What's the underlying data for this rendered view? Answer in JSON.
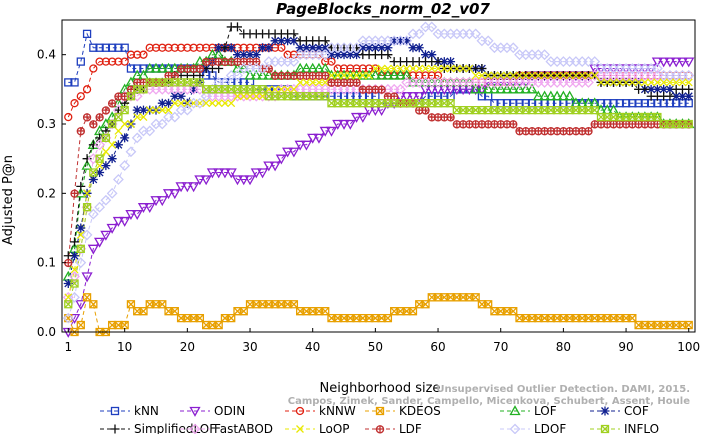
{
  "chart_data": {
    "type": "line",
    "title": "PageBlocks_norm_02_v07",
    "xlabel": "Neighborhood size",
    "ylabel": "Adjusted P@n",
    "xlim": [
      0,
      101
    ],
    "ylim": [
      0,
      0.45
    ],
    "xticks": [
      1,
      10,
      20,
      30,
      40,
      50,
      60,
      70,
      80,
      90,
      100
    ],
    "yticks": [
      0.0,
      0.1,
      0.2,
      0.3,
      0.4
    ],
    "ytick_labels": [
      "0.0",
      "0.1",
      "0.2",
      "0.3",
      "0.4"
    ],
    "grid": false,
    "legend_position": "bottom",
    "watermark": [
      "Unsupervised Outlier Detection. DAMI, 2015.",
      "Campos, Zimek, Sander, Campello, Micenkova, Schubert, Assent, Houle"
    ],
    "series": [
      {
        "name": "kNN",
        "color": "#1f3fbf",
        "marker": "square",
        "points": [
          [
            1,
            0.36
          ],
          [
            2,
            0.36
          ],
          [
            3,
            0.39
          ],
          [
            4,
            0.43
          ],
          [
            5,
            0.41
          ],
          [
            10,
            0.41
          ],
          [
            11,
            0.38
          ],
          [
            15,
            0.38
          ],
          [
            20,
            0.38
          ],
          [
            22,
            0.38
          ],
          [
            25,
            0.36
          ],
          [
            35,
            0.35
          ],
          [
            38,
            0.34
          ],
          [
            45,
            0.34
          ],
          [
            55,
            0.33
          ],
          [
            65,
            0.35
          ],
          [
            70,
            0.33
          ],
          [
            85,
            0.33
          ],
          [
            100,
            0.33
          ]
        ]
      },
      {
        "name": "ODIN",
        "color": "#8b1fd0",
        "marker": "triangle-down",
        "points": [
          [
            1,
            0.0
          ],
          [
            2,
            0.02
          ],
          [
            3,
            0.04
          ],
          [
            4,
            0.08
          ],
          [
            5,
            0.12
          ],
          [
            8,
            0.15
          ],
          [
            10,
            0.16
          ],
          [
            15,
            0.19
          ],
          [
            20,
            0.21
          ],
          [
            25,
            0.23
          ],
          [
            30,
            0.22
          ],
          [
            35,
            0.25
          ],
          [
            40,
            0.28
          ],
          [
            45,
            0.3
          ],
          [
            50,
            0.32
          ],
          [
            55,
            0.34
          ],
          [
            60,
            0.35
          ],
          [
            65,
            0.35
          ],
          [
            70,
            0.36
          ],
          [
            80,
            0.37
          ],
          [
            90,
            0.38
          ],
          [
            100,
            0.39
          ]
        ]
      },
      {
        "name": "kNNW",
        "color": "#e02010",
        "marker": "circle",
        "points": [
          [
            1,
            0.31
          ],
          [
            2,
            0.33
          ],
          [
            3,
            0.34
          ],
          [
            4,
            0.35
          ],
          [
            5,
            0.38
          ],
          [
            6,
            0.39
          ],
          [
            10,
            0.39
          ],
          [
            12,
            0.4
          ],
          [
            15,
            0.41
          ],
          [
            20,
            0.41
          ],
          [
            25,
            0.41
          ],
          [
            30,
            0.41
          ],
          [
            40,
            0.4
          ],
          [
            45,
            0.38
          ],
          [
            55,
            0.37
          ],
          [
            65,
            0.36
          ],
          [
            80,
            0.37
          ],
          [
            100,
            0.37
          ]
        ]
      },
      {
        "name": "KDEOS",
        "color": "#e8a000",
        "marker": "square-x",
        "points": [
          [
            1,
            0.02
          ],
          [
            2,
            0.0
          ],
          [
            3,
            0.01
          ],
          [
            4,
            0.05
          ],
          [
            5,
            0.04
          ],
          [
            6,
            0.0
          ],
          [
            10,
            0.01
          ],
          [
            11,
            0.04
          ],
          [
            12,
            0.03
          ],
          [
            15,
            0.04
          ],
          [
            20,
            0.02
          ],
          [
            25,
            0.01
          ],
          [
            30,
            0.04
          ],
          [
            35,
            0.04
          ],
          [
            40,
            0.03
          ],
          [
            45,
            0.02
          ],
          [
            50,
            0.02
          ],
          [
            55,
            0.03
          ],
          [
            60,
            0.05
          ],
          [
            65,
            0.05
          ],
          [
            70,
            0.03
          ],
          [
            75,
            0.02
          ],
          [
            80,
            0.02
          ],
          [
            85,
            0.02
          ],
          [
            90,
            0.02
          ],
          [
            93,
            0.01
          ],
          [
            100,
            0.01
          ]
        ]
      },
      {
        "name": "LOF",
        "color": "#22b022",
        "marker": "triangle-up",
        "points": [
          [
            1,
            0.08
          ],
          [
            2,
            0.12
          ],
          [
            3,
            0.2
          ],
          [
            4,
            0.24
          ],
          [
            5,
            0.27
          ],
          [
            6,
            0.29
          ],
          [
            8,
            0.31
          ],
          [
            10,
            0.35
          ],
          [
            12,
            0.37
          ],
          [
            15,
            0.38
          ],
          [
            20,
            0.38
          ],
          [
            25,
            0.4
          ],
          [
            30,
            0.37
          ],
          [
            35,
            0.37
          ],
          [
            40,
            0.38
          ],
          [
            45,
            0.37
          ],
          [
            50,
            0.37
          ],
          [
            60,
            0.36
          ],
          [
            70,
            0.35
          ],
          [
            80,
            0.34
          ],
          [
            90,
            0.31
          ],
          [
            100,
            0.3
          ]
        ]
      },
      {
        "name": "COF",
        "color": "#102090",
        "marker": "asterisk",
        "points": [
          [
            1,
            0.07
          ],
          [
            2,
            0.11
          ],
          [
            3,
            0.15
          ],
          [
            4,
            0.2
          ],
          [
            5,
            0.22
          ],
          [
            8,
            0.25
          ],
          [
            10,
            0.28
          ],
          [
            12,
            0.32
          ],
          [
            15,
            0.32
          ],
          [
            18,
            0.34
          ],
          [
            20,
            0.33
          ],
          [
            22,
            0.36
          ],
          [
            25,
            0.41
          ],
          [
            30,
            0.4
          ],
          [
            35,
            0.42
          ],
          [
            40,
            0.41
          ],
          [
            45,
            0.4
          ],
          [
            55,
            0.42
          ],
          [
            60,
            0.39
          ],
          [
            70,
            0.37
          ],
          [
            80,
            0.37
          ],
          [
            90,
            0.36
          ],
          [
            100,
            0.34
          ]
        ]
      },
      {
        "name": "SimplifiedLOF",
        "color": "#101010",
        "marker": "plus",
        "points": [
          [
            1,
            0.11
          ],
          [
            2,
            0.13
          ],
          [
            3,
            0.21
          ],
          [
            4,
            0.25
          ],
          [
            5,
            0.27
          ],
          [
            8,
            0.3
          ],
          [
            10,
            0.33
          ],
          [
            12,
            0.35
          ],
          [
            15,
            0.36
          ],
          [
            20,
            0.37
          ],
          [
            25,
            0.38
          ],
          [
            27,
            0.44
          ],
          [
            30,
            0.43
          ],
          [
            35,
            0.43
          ],
          [
            40,
            0.42
          ],
          [
            45,
            0.41
          ],
          [
            50,
            0.4
          ],
          [
            55,
            0.39
          ],
          [
            65,
            0.38
          ],
          [
            70,
            0.37
          ],
          [
            80,
            0.37
          ],
          [
            90,
            0.36
          ],
          [
            95,
            0.34
          ],
          [
            100,
            0.35
          ]
        ]
      },
      {
        "name": "FastABOD",
        "color": "#f0a8f0",
        "marker": "diamond",
        "points": [
          [
            1,
            0.05
          ],
          [
            2,
            0.08
          ],
          [
            3,
            0.12
          ],
          [
            4,
            0.18
          ],
          [
            5,
            0.25
          ],
          [
            8,
            0.3
          ],
          [
            10,
            0.34
          ],
          [
            15,
            0.35
          ],
          [
            20,
            0.35
          ],
          [
            25,
            0.34
          ],
          [
            30,
            0.34
          ],
          [
            40,
            0.35
          ],
          [
            50,
            0.35
          ],
          [
            60,
            0.36
          ],
          [
            70,
            0.36
          ],
          [
            80,
            0.36
          ],
          [
            90,
            0.37
          ],
          [
            100,
            0.37
          ]
        ]
      },
      {
        "name": "LoOP",
        "color": "#e8e800",
        "marker": "x",
        "points": [
          [
            1,
            0.05
          ],
          [
            2,
            0.09
          ],
          [
            3,
            0.14
          ],
          [
            4,
            0.2
          ],
          [
            5,
            0.23
          ],
          [
            8,
            0.27
          ],
          [
            10,
            0.3
          ],
          [
            15,
            0.32
          ],
          [
            20,
            0.33
          ],
          [
            25,
            0.33
          ],
          [
            30,
            0.34
          ],
          [
            35,
            0.35
          ],
          [
            40,
            0.36
          ],
          [
            45,
            0.37
          ],
          [
            55,
            0.38
          ],
          [
            60,
            0.38
          ],
          [
            70,
            0.37
          ],
          [
            80,
            0.37
          ],
          [
            90,
            0.36
          ],
          [
            100,
            0.36
          ]
        ]
      },
      {
        "name": "LDF",
        "color": "#c03030",
        "marker": "circle-plus",
        "points": [
          [
            1,
            0.1
          ],
          [
            2,
            0.2
          ],
          [
            3,
            0.29
          ],
          [
            4,
            0.31
          ],
          [
            5,
            0.3
          ],
          [
            8,
            0.33
          ],
          [
            10,
            0.34
          ],
          [
            12,
            0.36
          ],
          [
            15,
            0.36
          ],
          [
            20,
            0.38
          ],
          [
            25,
            0.39
          ],
          [
            30,
            0.39
          ],
          [
            35,
            0.37
          ],
          [
            40,
            0.37
          ],
          [
            45,
            0.36
          ],
          [
            50,
            0.35
          ],
          [
            55,
            0.33
          ],
          [
            60,
            0.31
          ],
          [
            65,
            0.3
          ],
          [
            70,
            0.3
          ],
          [
            75,
            0.29
          ],
          [
            80,
            0.29
          ],
          [
            90,
            0.3
          ],
          [
            100,
            0.3
          ]
        ]
      },
      {
        "name": "LDOF",
        "color": "#c8c8f8",
        "marker": "diamond-open",
        "points": [
          [
            1,
            0.02
          ],
          [
            2,
            0.05
          ],
          [
            3,
            0.1
          ],
          [
            4,
            0.14
          ],
          [
            5,
            0.17
          ],
          [
            8,
            0.2
          ],
          [
            10,
            0.24
          ],
          [
            12,
            0.28
          ],
          [
            15,
            0.3
          ],
          [
            20,
            0.32
          ],
          [
            22,
            0.33
          ],
          [
            25,
            0.36
          ],
          [
            30,
            0.38
          ],
          [
            35,
            0.39
          ],
          [
            40,
            0.4
          ],
          [
            45,
            0.41
          ],
          [
            50,
            0.42
          ],
          [
            55,
            0.42
          ],
          [
            58,
            0.44
          ],
          [
            60,
            0.43
          ],
          [
            65,
            0.43
          ],
          [
            70,
            0.41
          ],
          [
            75,
            0.4
          ],
          [
            80,
            0.39
          ],
          [
            90,
            0.38
          ],
          [
            100,
            0.37
          ]
        ]
      },
      {
        "name": "INFLO",
        "color": "#a0d020",
        "marker": "square-x",
        "points": [
          [
            1,
            0.04
          ],
          [
            2,
            0.07
          ],
          [
            3,
            0.12
          ],
          [
            4,
            0.18
          ],
          [
            5,
            0.23
          ],
          [
            8,
            0.3
          ],
          [
            10,
            0.32
          ],
          [
            12,
            0.35
          ],
          [
            15,
            0.36
          ],
          [
            20,
            0.36
          ],
          [
            25,
            0.35
          ],
          [
            30,
            0.35
          ],
          [
            35,
            0.34
          ],
          [
            40,
            0.34
          ],
          [
            45,
            0.33
          ],
          [
            50,
            0.33
          ],
          [
            60,
            0.33
          ],
          [
            65,
            0.32
          ],
          [
            70,
            0.32
          ],
          [
            80,
            0.32
          ],
          [
            90,
            0.31
          ],
          [
            100,
            0.3
          ]
        ]
      }
    ]
  }
}
